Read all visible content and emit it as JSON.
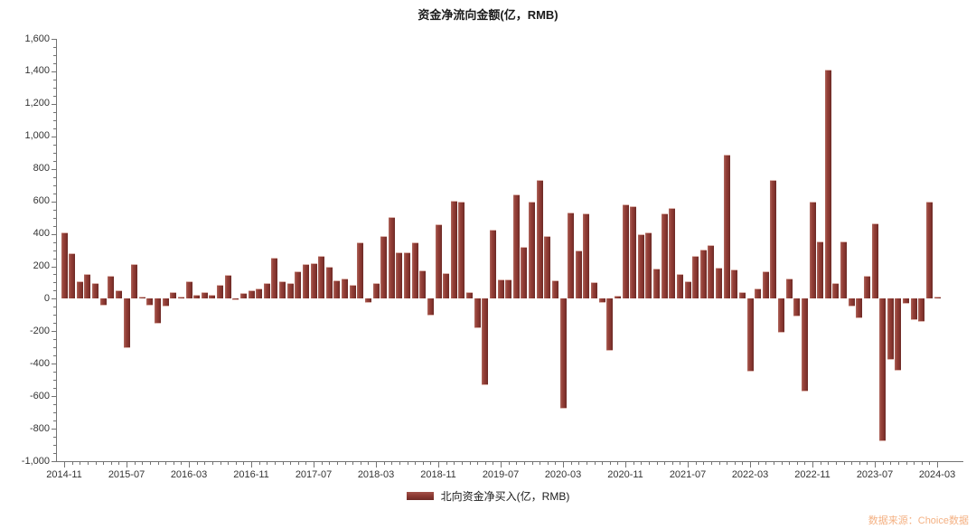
{
  "header": {
    "title": "资金净流向金额(亿，RMB)"
  },
  "legend": {
    "label": "北向资金净买入(亿，RMB)"
  },
  "footer": {
    "source": "数据来源：Choice数据"
  },
  "colors": {
    "bar_main": "#8e3b34",
    "bar_highlight": "#b06a60",
    "bar_shadow": "#6b2a25",
    "axis": "#737373",
    "tick_label": "#333333",
    "source_text": "#f4b183",
    "background": "#ffffff"
  },
  "chart_data": {
    "type": "bar",
    "title": "资金净流向金额(亿，RMB)",
    "series_name": "北向资金净买入(亿，RMB)",
    "xlabel": "",
    "ylabel": "",
    "ylim": [
      -1000,
      1600
    ],
    "y_tick_step": 200,
    "y_minor_step": 50,
    "x_label_every": 8,
    "grid": false,
    "legend_position": "bottom-center",
    "x": [
      "2014-11",
      "2014-12",
      "2015-01",
      "2015-02",
      "2015-03",
      "2015-04",
      "2015-05",
      "2015-06",
      "2015-07",
      "2015-08",
      "2015-09",
      "2015-10",
      "2015-11",
      "2015-12",
      "2016-01",
      "2016-02",
      "2016-03",
      "2016-04",
      "2016-05",
      "2016-06",
      "2016-07",
      "2016-08",
      "2016-09",
      "2016-10",
      "2016-11",
      "2016-12",
      "2017-01",
      "2017-02",
      "2017-03",
      "2017-04",
      "2017-05",
      "2017-06",
      "2017-07",
      "2017-08",
      "2017-09",
      "2017-10",
      "2017-11",
      "2017-12",
      "2018-01",
      "2018-02",
      "2018-03",
      "2018-04",
      "2018-05",
      "2018-06",
      "2018-07",
      "2018-08",
      "2018-09",
      "2018-10",
      "2018-11",
      "2018-12",
      "2019-01",
      "2019-02",
      "2019-03",
      "2019-04",
      "2019-05",
      "2019-06",
      "2019-07",
      "2019-08",
      "2019-09",
      "2019-10",
      "2019-11",
      "2019-12",
      "2020-01",
      "2020-02",
      "2020-03",
      "2020-04",
      "2020-05",
      "2020-06",
      "2020-07",
      "2020-08",
      "2020-09",
      "2020-10",
      "2020-11",
      "2020-12",
      "2021-01",
      "2021-02",
      "2021-03",
      "2021-04",
      "2021-05",
      "2021-06",
      "2021-07",
      "2021-08",
      "2021-09",
      "2021-10",
      "2021-11",
      "2021-12",
      "2022-01",
      "2022-02",
      "2022-03",
      "2022-04",
      "2022-05",
      "2022-06",
      "2022-07",
      "2022-08",
      "2022-09",
      "2022-10",
      "2022-11",
      "2022-12",
      "2023-01",
      "2023-02",
      "2023-03",
      "2023-04",
      "2023-05",
      "2023-06",
      "2023-07",
      "2023-08",
      "2023-09",
      "2023-10",
      "2023-11",
      "2023-12",
      "2024-01",
      "2024-02",
      "2024-03"
    ],
    "values": [
      410,
      280,
      110,
      155,
      95,
      -45,
      140,
      55,
      -305,
      215,
      15,
      -45,
      -155,
      -50,
      40,
      15,
      110,
      25,
      40,
      25,
      85,
      145,
      -10,
      35,
      50,
      65,
      95,
      255,
      110,
      95,
      170,
      215,
      220,
      265,
      200,
      115,
      125,
      85,
      350,
      -25,
      95,
      385,
      505,
      285,
      285,
      350,
      175,
      -105,
      460,
      160,
      605,
      600,
      40,
      -180,
      -535,
      425,
      120,
      120,
      645,
      320,
      600,
      730,
      385,
      115,
      -680,
      530,
      300,
      525,
      105,
      -25,
      -320,
      20,
      580,
      570,
      400,
      410,
      185,
      525,
      560,
      150,
      110,
      265,
      305,
      330,
      190,
      890,
      180,
      40,
      -450,
      65,
      170,
      730,
      -210,
      125,
      -110,
      -570,
      600,
      355,
      1413,
      95,
      355,
      -46,
      -120,
      140,
      465,
      -880,
      -375,
      -445,
      -30,
      -130,
      -145,
      600,
      15
    ],
    "x_tick_labels": [
      "2014-11",
      "2015-07",
      "2016-03",
      "2016-11",
      "2017-07",
      "2018-03",
      "2018-11",
      "2019-07",
      "2020-03",
      "2020-11",
      "2021-07",
      "2022-03",
      "2022-11",
      "2023-07",
      "2024-03"
    ]
  }
}
